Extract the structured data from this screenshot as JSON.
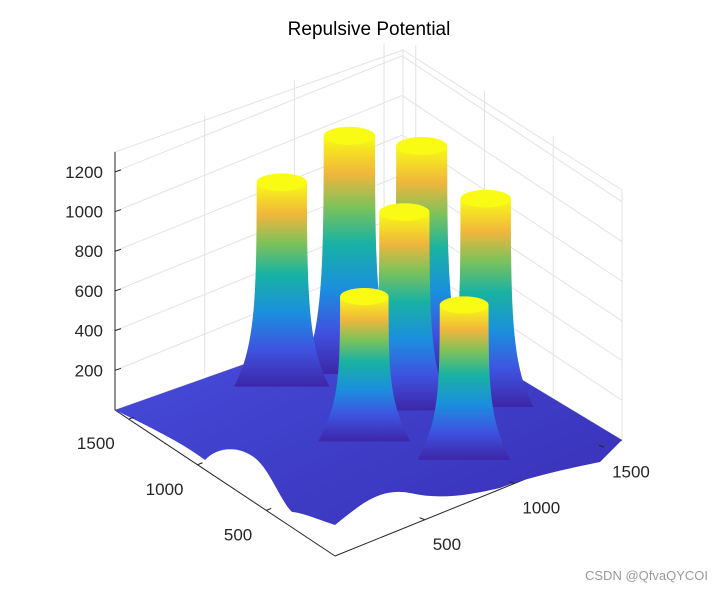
{
  "chart_data": {
    "type": "surface",
    "title": "Repulsive Potential",
    "xlabel": "",
    "ylabel": "",
    "zlabel": "",
    "x_ticks": [
      500,
      1000,
      1500
    ],
    "y_ticks": [
      500,
      1000,
      1500
    ],
    "z_ticks": [
      200,
      400,
      600,
      800,
      1000,
      1200
    ],
    "xlim": [
      0,
      1600
    ],
    "ylim": [
      0,
      1600
    ],
    "zlim": [
      0,
      1300
    ],
    "grid": true,
    "colormap": "parula",
    "colors": {
      "low": "#3d26a8",
      "mid": "#19b2a2",
      "high": "#f9fb15",
      "grid": "#e3e3e3",
      "axis": "#262626"
    },
    "peaks": [
      {
        "x": 1000,
        "y": 1200,
        "height": 1200
      },
      {
        "x": 1250,
        "y": 1000,
        "height": 1150
      },
      {
        "x": 1300,
        "y": 600,
        "height": 1050
      },
      {
        "x": 700,
        "y": 1300,
        "height": 1030
      },
      {
        "x": 1000,
        "y": 800,
        "height": 1000
      },
      {
        "x": 950,
        "y": 300,
        "height": 780
      },
      {
        "x": 700,
        "y": 700,
        "height": 730
      }
    ]
  },
  "watermark": "CSDN @QfvaQYCOI"
}
